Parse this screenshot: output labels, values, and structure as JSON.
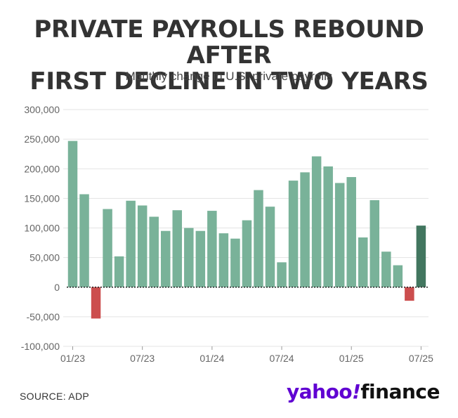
{
  "title_line1": "PRIVATE PAYROLLS REBOUND AFTER",
  "title_line2": "FIRST DECLINE IN TWO YEARS",
  "subtitle": "Monthly change in U.S. private payrolls",
  "source": "SOURCE: ADP",
  "logo": {
    "part1": "yahoo",
    "part2": "!",
    "part3": "finance"
  },
  "colors": {
    "positive": "#79b299",
    "negative": "#cc4e4e",
    "latest": "#42765f",
    "grid": "#e3e3e3",
    "zero": "#222222"
  },
  "chart_data": {
    "type": "bar",
    "title": "PRIVATE PAYROLLS REBOUND AFTER FIRST DECLINE IN TWO YEARS",
    "subtitle": "Monthly change in U.S. private payrolls",
    "xlabel": "",
    "ylabel": "",
    "ylim": [
      -100000,
      300000
    ],
    "yticks": [
      300000,
      250000,
      200000,
      150000,
      100000,
      50000,
      0,
      -50000,
      -100000
    ],
    "ytick_labels": [
      "300,000",
      "250,000",
      "200,000",
      "150,000",
      "100,000",
      "50,000",
      "0",
      "-50,000",
      "-100,000"
    ],
    "xtick_labels": [
      {
        "label": "01/23",
        "index": 0
      },
      {
        "label": "07/23",
        "index": 6
      },
      {
        "label": "01/24",
        "index": 12
      },
      {
        "label": "07/24",
        "index": 18
      },
      {
        "label": "01/25",
        "index": 24
      },
      {
        "label": "07/25",
        "index": 30
      }
    ],
    "grid": true,
    "categories": [
      "2023-01",
      "2023-02",
      "2023-03",
      "2023-04",
      "2023-05",
      "2023-06",
      "2023-07",
      "2023-08",
      "2023-09",
      "2023-10",
      "2023-11",
      "2023-12",
      "2024-01",
      "2024-02",
      "2024-03",
      "2024-04",
      "2024-05",
      "2024-06",
      "2024-07",
      "2024-08",
      "2024-09",
      "2024-10",
      "2024-11",
      "2024-12",
      "2025-01",
      "2025-02",
      "2025-03",
      "2025-04",
      "2025-05",
      "2025-06",
      "2025-07"
    ],
    "values": [
      247000,
      157000,
      -53000,
      132000,
      52000,
      146000,
      138000,
      119000,
      95000,
      130000,
      100000,
      95000,
      129000,
      91000,
      82000,
      113000,
      164000,
      136000,
      42000,
      180000,
      194000,
      221000,
      204000,
      176000,
      186000,
      84000,
      147000,
      60000,
      37000,
      -23000,
      104000
    ]
  }
}
